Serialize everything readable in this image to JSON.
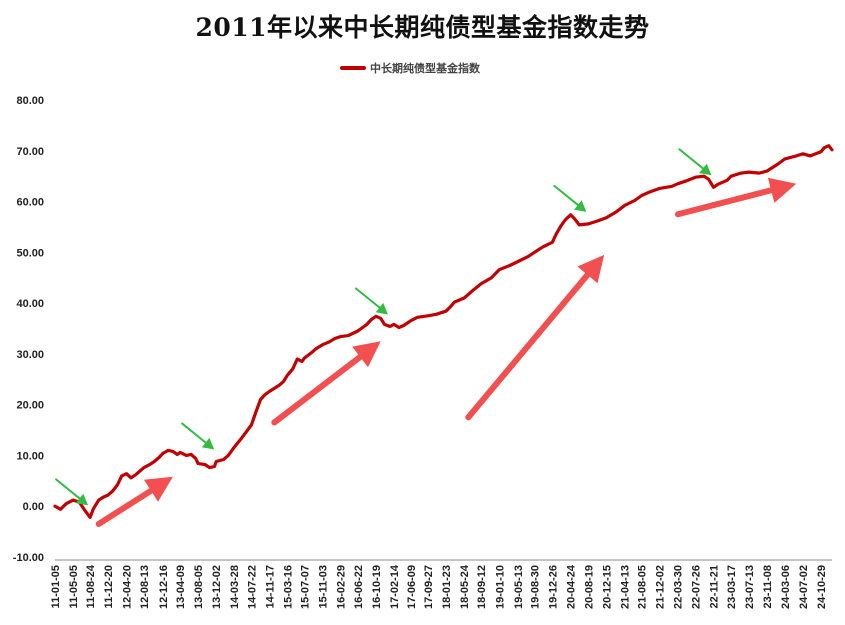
{
  "chart_data": {
    "type": "line",
    "title": "2011年以来中长期纯债型基金指数走势",
    "legend": "top",
    "series": [
      {
        "name": "中长期纯债型基金指数",
        "color": "#c00000",
        "points": [
          [
            "11-01-05",
            0.0
          ],
          [
            "11-02-10",
            -0.6
          ],
          [
            "11-03-20",
            0.5
          ],
          [
            "11-05-05",
            1.2
          ],
          [
            "11-06-15",
            0.8
          ],
          [
            "11-07-20",
            -0.8
          ],
          [
            "11-08-24",
            -2.2
          ],
          [
            "11-09-15",
            -0.5
          ],
          [
            "11-10-20",
            1.2
          ],
          [
            "11-11-20",
            1.8
          ],
          [
            "11-12-20",
            2.2
          ],
          [
            "12-01-20",
            3.0
          ],
          [
            "12-02-20",
            4.2
          ],
          [
            "12-03-20",
            6.0
          ],
          [
            "12-04-20",
            6.4
          ],
          [
            "12-05-20",
            5.6
          ],
          [
            "12-06-20",
            6.2
          ],
          [
            "12-07-20",
            7.0
          ],
          [
            "12-08-13",
            7.6
          ],
          [
            "12-09-20",
            8.2
          ],
          [
            "12-10-20",
            8.8
          ],
          [
            "12-11-20",
            9.6
          ],
          [
            "12-12-16",
            10.4
          ],
          [
            "13-01-20",
            11.0
          ],
          [
            "13-02-20",
            10.8
          ],
          [
            "13-03-20",
            10.2
          ],
          [
            "13-04-09",
            10.6
          ],
          [
            "13-05-20",
            10.0
          ],
          [
            "13-06-20",
            10.2
          ],
          [
            "13-07-20",
            9.4
          ],
          [
            "13-08-05",
            8.4
          ],
          [
            "13-09-20",
            8.2
          ],
          [
            "13-10-20",
            7.6
          ],
          [
            "13-11-20",
            7.8
          ],
          [
            "13-12-02",
            8.8
          ],
          [
            "14-01-20",
            9.2
          ],
          [
            "14-02-20",
            10.0
          ],
          [
            "14-03-28",
            11.5
          ],
          [
            "14-05-20",
            13.5
          ],
          [
            "14-07-22",
            16.0
          ],
          [
            "14-08-20",
            18.5
          ],
          [
            "14-09-20",
            21.0
          ],
          [
            "14-10-20",
            22.0
          ],
          [
            "14-11-17",
            22.6
          ],
          [
            "15-01-20",
            23.8
          ],
          [
            "15-02-20",
            24.6
          ],
          [
            "15-03-16",
            25.8
          ],
          [
            "15-04-20",
            27.0
          ],
          [
            "15-05-20",
            29.0
          ],
          [
            "15-06-20",
            28.5
          ],
          [
            "15-07-07",
            29.2
          ],
          [
            "15-08-20",
            30.2
          ],
          [
            "15-09-20",
            31.0
          ],
          [
            "15-11-03",
            31.8
          ],
          [
            "15-12-20",
            32.4
          ],
          [
            "16-01-20",
            33.0
          ],
          [
            "16-02-29",
            33.4
          ],
          [
            "16-04-20",
            33.6
          ],
          [
            "16-06-22",
            34.5
          ],
          [
            "16-08-20",
            35.8
          ],
          [
            "16-09-20",
            36.8
          ],
          [
            "16-10-19",
            37.4
          ],
          [
            "16-11-20",
            37.0
          ],
          [
            "16-12-15",
            35.8
          ],
          [
            "17-01-20",
            35.4
          ],
          [
            "17-02-14",
            35.8
          ],
          [
            "17-03-20",
            35.2
          ],
          [
            "17-04-20",
            35.6
          ],
          [
            "17-06-09",
            36.6
          ],
          [
            "17-07-20",
            37.2
          ],
          [
            "17-09-27",
            37.5
          ],
          [
            "17-11-20",
            37.8
          ],
          [
            "18-01-23",
            38.4
          ],
          [
            "18-02-20",
            39.2
          ],
          [
            "18-03-20",
            40.2
          ],
          [
            "18-05-24",
            41.0
          ],
          [
            "18-07-20",
            42.5
          ],
          [
            "18-09-12",
            43.8
          ],
          [
            "18-11-20",
            45.0
          ],
          [
            "19-01-10",
            46.6
          ],
          [
            "19-03-20",
            47.4
          ],
          [
            "19-05-13",
            48.2
          ],
          [
            "19-07-20",
            49.2
          ],
          [
            "19-08-30",
            50.0
          ],
          [
            "19-10-20",
            51.0
          ],
          [
            "19-12-26",
            52.0
          ],
          [
            "20-01-20",
            53.6
          ],
          [
            "20-02-20",
            55.2
          ],
          [
            "20-03-20",
            56.4
          ],
          [
            "20-04-24",
            57.4
          ],
          [
            "20-05-20",
            56.6
          ],
          [
            "20-06-20",
            55.4
          ],
          [
            "20-08-19",
            55.6
          ],
          [
            "20-10-20",
            56.2
          ],
          [
            "20-12-15",
            56.8
          ],
          [
            "21-02-20",
            58.0
          ],
          [
            "21-04-13",
            59.2
          ],
          [
            "21-06-20",
            60.2
          ],
          [
            "21-08-05",
            61.2
          ],
          [
            "21-09-20",
            61.8
          ],
          [
            "21-12-02",
            62.6
          ],
          [
            "22-02-20",
            63.0
          ],
          [
            "22-03-30",
            63.5
          ],
          [
            "22-05-20",
            64.0
          ],
          [
            "22-07-26",
            64.8
          ],
          [
            "22-09-20",
            65.0
          ],
          [
            "22-10-20",
            64.4
          ],
          [
            "22-11-21",
            62.8
          ],
          [
            "22-12-20",
            63.4
          ],
          [
            "23-02-20",
            64.2
          ],
          [
            "23-03-17",
            65.0
          ],
          [
            "23-05-20",
            65.6
          ],
          [
            "23-07-13",
            65.8
          ],
          [
            "23-09-20",
            65.6
          ],
          [
            "23-11-08",
            66.0
          ],
          [
            "24-01-20",
            67.4
          ],
          [
            "24-03-06",
            68.4
          ],
          [
            "24-05-20",
            69.0
          ],
          [
            "24-07-02",
            69.4
          ],
          [
            "24-08-20",
            69.0
          ],
          [
            "24-10-29",
            69.8
          ],
          [
            "24-11-20",
            70.6
          ],
          [
            "24-12-20",
            71.0
          ],
          [
            "25-01-10",
            70.2
          ]
        ]
      }
    ],
    "x_tick_labels": [
      "11-01-05",
      "11-05-05",
      "11-08-24",
      "11-12-20",
      "12-04-20",
      "12-08-13",
      "12-12-16",
      "13-04-09",
      "13-08-05",
      "13-12-02",
      "14-03-28",
      "14-07-22",
      "14-11-17",
      "15-03-16",
      "15-07-07",
      "15-11-03",
      "16-02-29",
      "16-06-22",
      "16-10-19",
      "17-02-14",
      "17-06-09",
      "17-09-27",
      "18-01-23",
      "18-05-24",
      "18-09-12",
      "19-01-10",
      "19-05-13",
      "19-08-30",
      "19-12-26",
      "20-04-24",
      "20-08-19",
      "20-12-15",
      "21-04-13",
      "21-08-05",
      "21-12-02",
      "22-03-30",
      "22-07-26",
      "22-11-21",
      "23-03-17",
      "23-07-13",
      "23-11-08",
      "24-03-06",
      "24-07-02",
      "24-10-29"
    ],
    "y_tick_labels": [
      "80.00",
      "70.00",
      "60.00",
      "50.00",
      "40.00",
      "30.00",
      "20.00",
      "10.00",
      "0.00",
      "-10.00"
    ],
    "ylim": [
      -10,
      80
    ],
    "grid": false,
    "annotations": {
      "green_arrows_at": [
        "11-08-24",
        "13-12-02",
        "17-01-20",
        "20-08-19",
        "22-11-21"
      ],
      "red_arrows_from_to": [
        [
          [
            "11-10-20",
            -3.5
          ],
          [
            "13-02-20",
            5.8
          ]
        ],
        [
          [
            "14-12-20",
            16.5
          ],
          [
            "16-11-20",
            32.5
          ]
        ],
        [
          [
            "18-06-20",
            17.5
          ],
          [
            "20-12-01",
            49.5
          ]
        ],
        [
          [
            "22-04-01",
            57.5
          ],
          [
            "24-05-20",
            63.5
          ]
        ]
      ]
    },
    "colors": {
      "line": "#c00000",
      "green_arrow": "#33bb44",
      "red_arrow": "#f25050"
    }
  }
}
